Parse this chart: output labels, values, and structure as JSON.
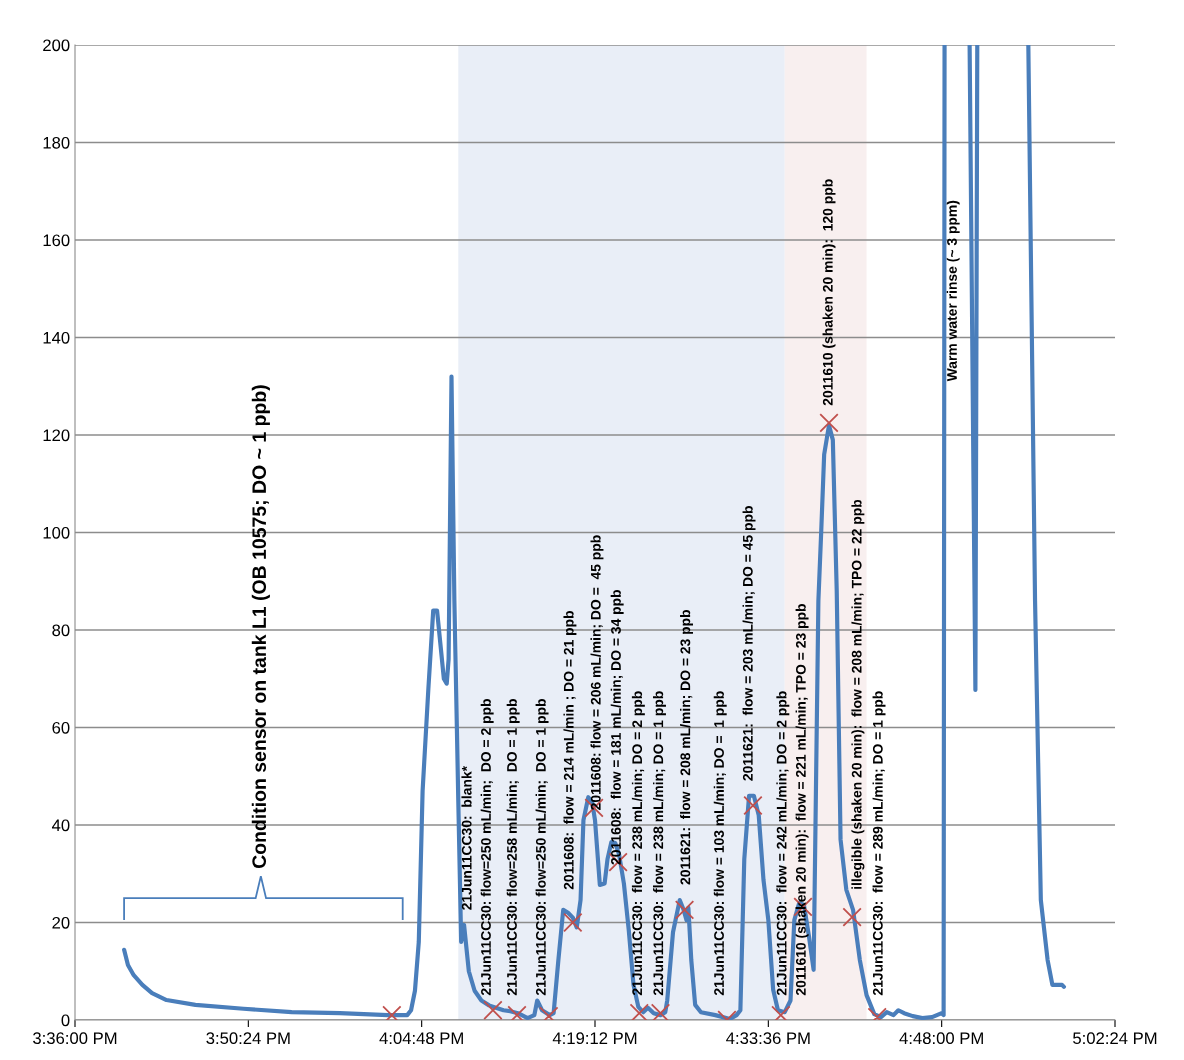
{
  "chart_data": {
    "type": "line",
    "xlim": [
      15.6,
      17.04
    ],
    "ylim": [
      0,
      200
    ],
    "xticks": [
      {
        "value": 15.6,
        "label": "3:36:00 PM"
      },
      {
        "value": 15.84,
        "label": "3:50:24 PM"
      },
      {
        "value": 16.08,
        "label": "4:04:48 PM"
      },
      {
        "value": 16.32,
        "label": "4:19:12 PM"
      },
      {
        "value": 16.56,
        "label": "4:33:36 PM"
      },
      {
        "value": 16.8,
        "label": "4:48:00 PM"
      },
      {
        "value": 17.04,
        "label": "5:02:24 PM"
      }
    ],
    "yticks": [
      0,
      20,
      40,
      60,
      80,
      100,
      120,
      140,
      160,
      180,
      200
    ],
    "grid": "y",
    "legend": false,
    "series": [
      {
        "color": "#4a7ebb",
        "marker": "none",
        "line_style": "solid",
        "x": [
          15.668,
          15.6733,
          15.6813,
          15.6933,
          15.7067,
          15.7267,
          15.7667,
          15.8333,
          15.9,
          15.9667,
          16.0333,
          16.06,
          16.0653,
          16.0707,
          16.076,
          16.0813,
          16.0893,
          16.096,
          16.1013,
          16.1067,
          16.1107,
          16.1147,
          16.1173,
          16.1213,
          16.1253,
          16.1307,
          16.1347,
          16.1387,
          16.1453,
          16.1533,
          16.1627,
          16.1733,
          16.1827,
          16.1933,
          16.2027,
          16.2133,
          16.2267,
          16.236,
          16.24,
          16.2467,
          16.2573,
          16.2627,
          16.2693,
          16.276,
          16.2827,
          16.2893,
          16.2947,
          16.3,
          16.304,
          16.3107,
          16.316,
          16.32,
          16.3267,
          16.3333,
          16.3373,
          16.3427,
          16.348,
          16.3533,
          16.36,
          16.3667,
          16.3733,
          16.38,
          16.3867,
          16.3933,
          16.4013,
          16.4107,
          16.4173,
          16.42,
          16.428,
          16.4373,
          16.4427,
          16.4467,
          16.4493,
          16.4533,
          16.4587,
          16.4667,
          16.4867,
          16.5067,
          16.516,
          16.5213,
          16.5267,
          16.5333,
          16.54,
          16.5467,
          16.5533,
          16.56,
          16.5667,
          16.5733,
          16.5827,
          16.5907,
          16.596,
          16.6027,
          16.6093,
          16.616,
          16.6227,
          16.6293,
          16.6333,
          16.6373,
          16.644,
          16.6493,
          16.6547,
          16.66,
          16.668,
          16.6773,
          16.6867,
          16.696,
          16.7067,
          16.716,
          16.724,
          16.7333,
          16.74,
          16.748,
          16.76,
          16.7733,
          16.7867,
          16.8,
          16.8027,
          16.804,
          16.82,
          16.8387,
          16.8467,
          16.8493,
          16.8867,
          16.92,
          16.9293,
          16.9373,
          16.9467,
          16.9533,
          16.9667,
          16.9693
        ],
        "values": [
          14.4,
          11.3,
          9.2,
          7.2,
          5.5,
          4.1,
          3.1,
          2.3,
          1.6,
          1.4,
          1.0,
          1.0,
          2,
          6,
          16,
          47,
          68,
          84,
          84,
          76,
          70,
          69,
          74,
          132,
          86,
          45,
          16,
          19.5,
          10,
          6,
          4,
          3,
          2.5,
          2,
          1.8,
          1.4,
          0.4,
          1,
          4,
          2,
          1,
          1.4,
          12.3,
          22.6,
          22,
          21,
          19,
          24.6,
          41,
          45.7,
          44.7,
          41,
          27.7,
          28,
          33,
          36.5,
          36.3,
          34,
          28,
          18.5,
          7.2,
          2.7,
          1.6,
          2.5,
          1.4,
          1,
          1.6,
          4,
          18,
          24.6,
          22.6,
          20.5,
          23,
          12.3,
          3.1,
          1.6,
          1.0,
          0.2,
          1,
          2,
          33,
          46,
          46,
          42,
          28.7,
          20.5,
          6.2,
          2,
          1.6,
          4,
          20.5,
          24,
          23.6,
          17.4,
          10.3,
          86,
          100.5,
          116,
          122,
          119,
          88,
          37,
          26.7,
          22.6,
          12.3,
          5.1,
          1.2,
          0.6,
          1.6,
          1,
          2,
          1.4,
          0.8,
          0.4,
          0.6,
          1.4,
          1,
          200,
          null,
          200,
          67.7,
          200,
          null,
          200,
          86,
          24.6,
          12.3,
          7.2,
          7.2,
          6.8
        ]
      },
      {
        "type": "scatter",
        "color": "#c0504d",
        "marker": "cross",
        "x": [
          16.0387,
          16.1787,
          16.212,
          16.256,
          16.2893,
          16.3187,
          16.352,
          16.3813,
          16.4107,
          16.444,
          16.5027,
          16.5387,
          16.5773,
          16.608,
          16.644,
          16.676,
          16.7107
        ],
        "values": [
          1.0,
          2,
          1,
          0.8,
          20,
          43.5,
          32.4,
          1.4,
          1.4,
          22.6,
          0,
          44,
          1,
          23.2,
          122.5,
          21.1,
          0.6
        ]
      }
    ],
    "bands": [
      {
        "axis": "x",
        "from": 16.1307,
        "to": 16.5827,
        "color": "#e9eef7"
      },
      {
        "axis": "x",
        "from": 16.5827,
        "to": 16.696,
        "color": "#f8efef"
      }
    ],
    "annotations": [
      "Condition sensor on tank L1 (OB 10575; DO ~ 1 ppb)",
      "21Jun11CC30:  blank*",
      "21Jun11CC30: flow=250 mL/min;  DO = 2 ppb",
      "21Jun11CC30: flow=258 mL/min;  DO = 1 ppb",
      "21Jun11CC30: flow=250 mL/min;  DO = 1 ppb",
      "2011608:  flow = 214 mL/min ; DO = 21 ppb",
      "2011608: flow = 206 mL/min; DO =  45 ppb",
      "2011608:  flow = 181 mL/min; DO = 34 ppb",
      "21Jun11CC30:  flow = 238 mL/min; DO = 2 ppb",
      "21Jun11CC30:  flow = 238 mL/min; DO = 1 ppb",
      "2011621:  flow = 208 mL/min; DO = 23 ppb",
      "21Jun11CC30: flow = 103 mL/min; DO =  1 ppb",
      "2011621:  flow = 203 mL/min; DO = 45 ppb",
      "21Jun11CC30:  flow = 242 mL/min; DO = 2 ppb",
      "2011610 (shaken 20 min):  flow = 221 mL/min; TPO = 23 ppb",
      "2011610 (shaken 20 min):  120 ppb",
      "illegible (shaken 20 min):  flow = 208 mL/min; TPO = 22 ppb",
      "21Jun11CC30:  flow = 289 mL/min; DO = 1 ppb",
      "Warm water rinse (~ 3 ppm)"
    ]
  }
}
